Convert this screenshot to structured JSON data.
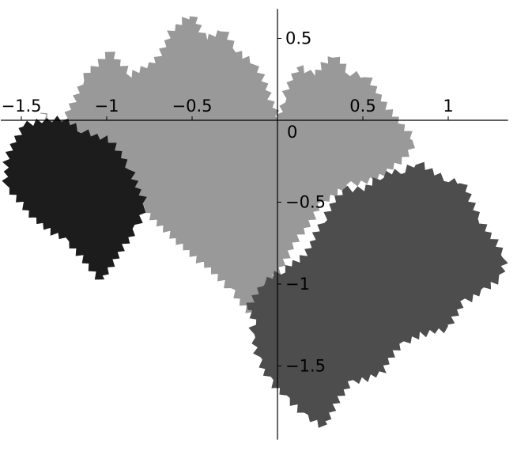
{
  "chart_data": {
    "type": "area",
    "title": "",
    "xlabel": "",
    "ylabel": "",
    "xlim": [
      -1.62,
      1.35
    ],
    "ylim": [
      -1.95,
      0.68
    ],
    "grid": false,
    "legend": "none",
    "x_ticks": [
      {
        "value": -1.5,
        "label": "−1.5"
      },
      {
        "value": -1,
        "label": "−1"
      },
      {
        "value": -0.5,
        "label": "−0.5"
      },
      {
        "value": 0.5,
        "label": "0.5"
      },
      {
        "value": 1,
        "label": "1"
      }
    ],
    "y_ticks": [
      {
        "value": 0.5,
        "label": "0.5"
      },
      {
        "value": -0.5,
        "label": "−0.5"
      },
      {
        "value": -1,
        "label": "−1"
      },
      {
        "value": -1.5,
        "label": "−1.5"
      }
    ],
    "origin_label": "0",
    "series": [
      {
        "color": "#999999",
        "polygon": [
          [
            -1.38,
            0.05
          ],
          [
            -1.28,
            -0.09
          ],
          [
            -1.14,
            0.25
          ],
          [
            -0.98,
            0.43
          ],
          [
            -0.86,
            0.27
          ],
          [
            -0.72,
            0.35
          ],
          [
            -0.61,
            0.56
          ],
          [
            -0.5,
            0.64
          ],
          [
            -0.42,
            0.5
          ],
          [
            -0.32,
            0.55
          ],
          [
            -0.24,
            0.42
          ],
          [
            -0.13,
            0.35
          ],
          [
            -0.02,
            0.08
          ],
          [
            0.0,
            0.0
          ],
          [
            0.04,
            0.14
          ],
          [
            0.12,
            0.33
          ],
          [
            0.21,
            0.28
          ],
          [
            0.33,
            0.39
          ],
          [
            0.43,
            0.29
          ],
          [
            0.52,
            0.27
          ],
          [
            0.61,
            0.12
          ],
          [
            0.72,
            -0.01
          ],
          [
            0.8,
            -0.13
          ],
          [
            0.74,
            -0.24
          ],
          [
            0.6,
            -0.34
          ],
          [
            0.41,
            -0.4
          ],
          [
            0.25,
            -0.52
          ],
          [
            0.04,
            -0.85
          ],
          [
            -0.08,
            -1.08
          ],
          [
            -0.15,
            -1.18
          ],
          [
            -0.28,
            -1.03
          ],
          [
            -0.4,
            -0.91
          ],
          [
            -0.56,
            -0.76
          ],
          [
            -0.72,
            -0.62
          ],
          [
            -0.86,
            -0.45
          ],
          [
            -0.98,
            -0.36
          ],
          [
            -1.1,
            -0.24
          ],
          [
            -1.22,
            -0.14
          ]
        ]
      },
      {
        "color": "#1c1c1c",
        "polygon": [
          [
            -1.49,
            -0.03
          ],
          [
            -1.38,
            0.0
          ],
          [
            -1.26,
            0.0
          ],
          [
            -1.14,
            -0.06
          ],
          [
            -0.98,
            -0.13
          ],
          [
            -0.86,
            -0.3
          ],
          [
            -0.77,
            -0.53
          ],
          [
            -0.84,
            -0.67
          ],
          [
            -0.95,
            -0.86
          ],
          [
            -1.03,
            -0.98
          ],
          [
            -1.11,
            -0.88
          ],
          [
            -1.25,
            -0.73
          ],
          [
            -1.42,
            -0.6
          ],
          [
            -1.6,
            -0.4
          ],
          [
            -1.58,
            -0.23
          ]
        ]
      },
      {
        "color": "#4d4d4d",
        "polygon": [
          [
            -0.18,
            -1.15
          ],
          [
            -0.08,
            -0.98
          ],
          [
            0.04,
            -0.92
          ],
          [
            0.16,
            -0.82
          ],
          [
            0.28,
            -0.6
          ],
          [
            0.38,
            -0.42
          ],
          [
            0.5,
            -0.42
          ],
          [
            0.62,
            -0.34
          ],
          [
            0.74,
            -0.3
          ],
          [
            0.82,
            -0.26
          ],
          [
            0.92,
            -0.33
          ],
          [
            1.01,
            -0.36
          ],
          [
            1.08,
            -0.38
          ],
          [
            1.2,
            -0.62
          ],
          [
            1.33,
            -0.84
          ],
          [
            1.3,
            -0.97
          ],
          [
            1.2,
            -1.05
          ],
          [
            1.08,
            -1.11
          ],
          [
            1.0,
            -1.28
          ],
          [
            0.84,
            -1.3
          ],
          [
            0.72,
            -1.37
          ],
          [
            0.6,
            -1.55
          ],
          [
            0.42,
            -1.6
          ],
          [
            0.34,
            -1.74
          ],
          [
            0.28,
            -1.87
          ],
          [
            0.15,
            -1.79
          ],
          [
            0.04,
            -1.69
          ],
          [
            -0.05,
            -1.57
          ],
          [
            -0.12,
            -1.45
          ],
          [
            -0.15,
            -1.3
          ],
          [
            -0.13,
            -1.22
          ]
        ]
      }
    ]
  }
}
